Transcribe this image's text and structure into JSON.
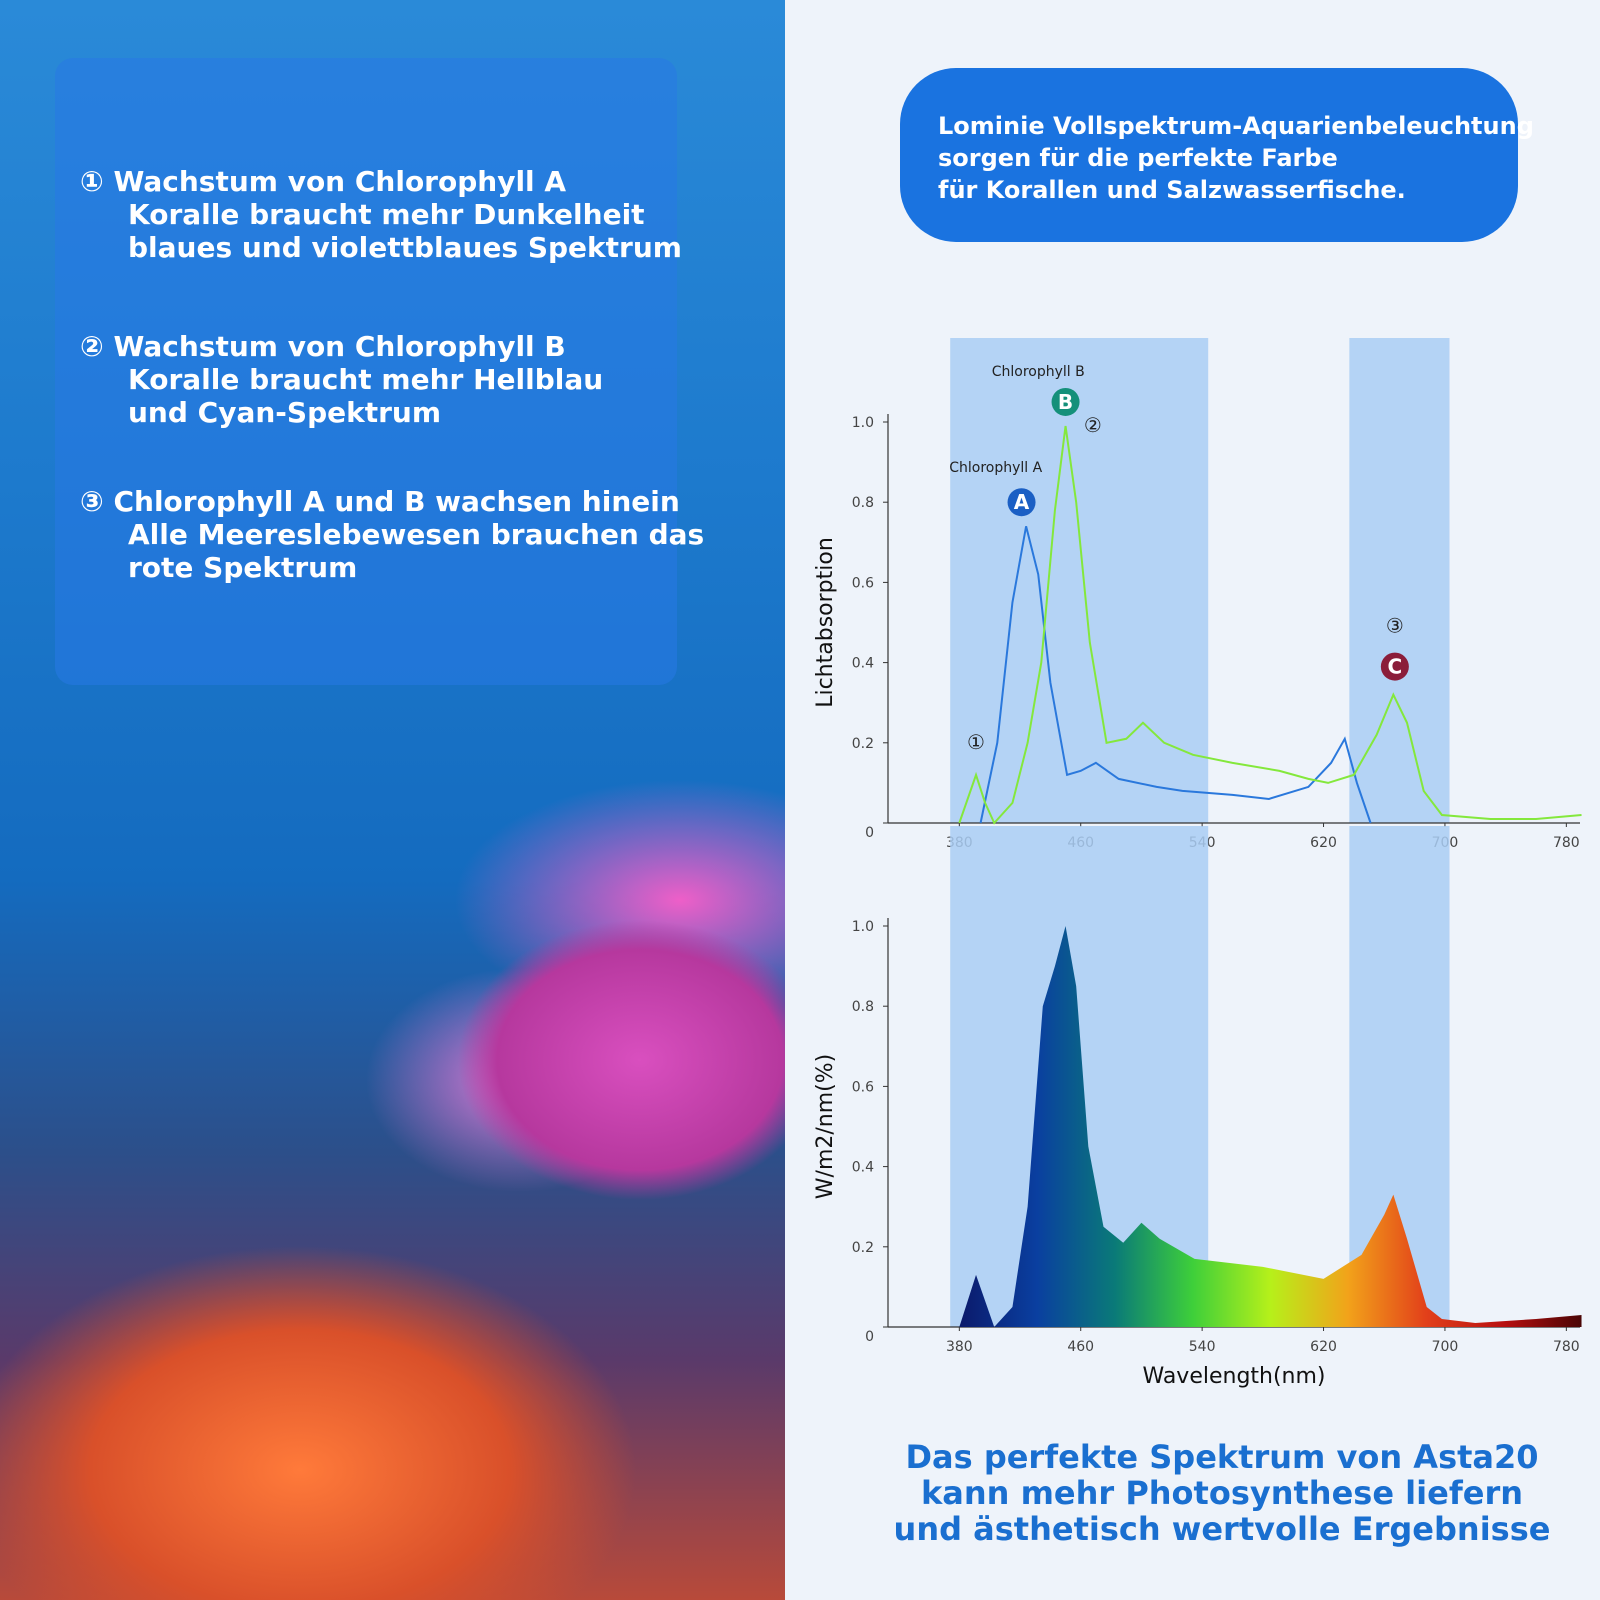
{
  "left_text": {
    "items": [
      {
        "marker": "①",
        "lines": [
          "Wachstum von Chlorophyll A",
          "Koralle braucht mehr Dunkelheit",
          "blaues und violettblaues Spektrum"
        ]
      },
      {
        "marker": "②",
        "lines": [
          "Wachstum von Chlorophyll B",
          "Koralle braucht mehr Hellblau",
          "und Cyan-Spektrum"
        ]
      },
      {
        "marker": "③",
        "lines": [
          "Chlorophyll A und B wachsen hinein",
          "Alle Meereslebewesen brauchen das",
          "rote Spektrum"
        ]
      }
    ]
  },
  "banner": {
    "lines": [
      "Lominie Vollspektrum-Aquarienbeleuchtung",
      "sorgen für die perfekte Farbe",
      "für Korallen und Salzwasserfische."
    ]
  },
  "footer": {
    "lines": [
      "Das perfekte Spektrum von Asta20",
      "kann mehr Photosynthese liefern",
      "und ästhetisch wertvolle Ergebnisse"
    ]
  },
  "chart_data": [
    {
      "type": "line",
      "ylabel": "Lichtabsorption",
      "xlim": [
        333,
        789
      ],
      "ylim": [
        0,
        1
      ],
      "xticks": [
        380,
        460,
        540,
        620,
        700,
        780
      ],
      "yticks": [
        0,
        {
          "value": 0.2,
          "label": "0.2"
        },
        {
          "value": 0.4,
          "label": "0.4"
        },
        {
          "value": 0.6,
          "label": "0.6"
        },
        {
          "value": 0.8,
          "label": "0.8"
        },
        {
          "value": 1,
          "label": "1.0"
        }
      ],
      "highlight_ranges": [
        [
          374,
          544
        ],
        [
          637,
          703
        ]
      ],
      "highlight_color": "#a9cdf3",
      "series": [
        {
          "color": "#2a78dc",
          "x": [
            394,
            405,
            415,
            424,
            432,
            440,
            451,
            460,
            470,
            485,
            510,
            527,
            560,
            584,
            610,
            625,
            634,
            642,
            651
          ],
          "values": [
            0,
            0.2,
            0.55,
            0.74,
            0.62,
            0.35,
            0.12,
            0.13,
            0.15,
            0.11,
            0.09,
            0.08,
            0.07,
            0.06,
            0.09,
            0.15,
            0.21,
            0.1,
            0
          ]
        },
        {
          "color": "#84e83c",
          "x": [
            380,
            391,
            397,
            403,
            415,
            425,
            434,
            443,
            450,
            457,
            466,
            477,
            490,
            501,
            515,
            534,
            560,
            591,
            610,
            623,
            640,
            655,
            666,
            675,
            686,
            698,
            730,
            760,
            790
          ],
          "values": [
            0,
            0.12,
            0.05,
            0,
            0.05,
            0.2,
            0.4,
            0.78,
            0.99,
            0.8,
            0.45,
            0.2,
            0.21,
            0.25,
            0.2,
            0.17,
            0.15,
            0.13,
            0.11,
            0.1,
            0.12,
            0.22,
            0.32,
            0.25,
            0.08,
            0.02,
            0.01,
            0.01,
            0.02
          ]
        }
      ],
      "annotations": [
        {
          "text": "①",
          "x": 391,
          "y": 0.2
        },
        {
          "text": "②",
          "x": 468,
          "y": 0.99
        },
        {
          "text": "③",
          "x": 667,
          "y": 0.49
        },
        {
          "text": "A",
          "x": 421,
          "y": 0.8,
          "color": "#1b5fc4"
        },
        {
          "text": "B",
          "x": 450,
          "y": 1.05,
          "color": "#14907a"
        },
        {
          "text": "C",
          "x": 667,
          "y": 0.39,
          "color": "#8b1d3a"
        },
        {
          "text": "Chlorophyll A",
          "x": 404,
          "y": 0.89
        },
        {
          "text": "Chlorophyll B",
          "x": 432,
          "y": 1.13
        }
      ]
    },
    {
      "type": "area",
      "ylabel": "W/m2/nm(%)",
      "xlabel": "Wavelength(nm)",
      "xlim": [
        333,
        789
      ],
      "ylim": [
        0,
        1
      ],
      "xticks": [
        380,
        460,
        540,
        620,
        700,
        780
      ],
      "yticks": [
        0,
        {
          "value": 0.2,
          "label": "0.2"
        },
        {
          "value": 0.4,
          "label": "0.4"
        },
        {
          "value": 0.6,
          "label": "0.6"
        },
        {
          "value": 0.8,
          "label": "0.8"
        },
        {
          "value": 1,
          "label": "1.0"
        }
      ],
      "highlight_ranges": [
        [
          374,
          544
        ],
        [
          637,
          703
        ]
      ],
      "highlight_color": "#a9cdf3",
      "gradient_colors": [
        "#0b1a6b",
        "#0a3fa0",
        "#0a7a78",
        "#3ecf3a",
        "#b6f01a",
        "#f2a21a",
        "#e2401a",
        "#b80f0f",
        "#4a0505"
      ],
      "x": [
        380,
        391,
        403,
        415,
        425,
        435,
        443,
        450,
        457,
        465,
        475,
        488,
        500,
        512,
        535,
        580,
        620,
        645,
        660,
        666,
        675,
        688,
        698,
        720,
        760,
        790
      ],
      "values": [
        0,
        0.13,
        0,
        0.05,
        0.3,
        0.8,
        0.9,
        1,
        0.85,
        0.45,
        0.25,
        0.21,
        0.26,
        0.22,
        0.17,
        0.15,
        0.12,
        0.18,
        0.28,
        0.33,
        0.22,
        0.05,
        0.02,
        0.01,
        0.02,
        0.03
      ]
    }
  ]
}
